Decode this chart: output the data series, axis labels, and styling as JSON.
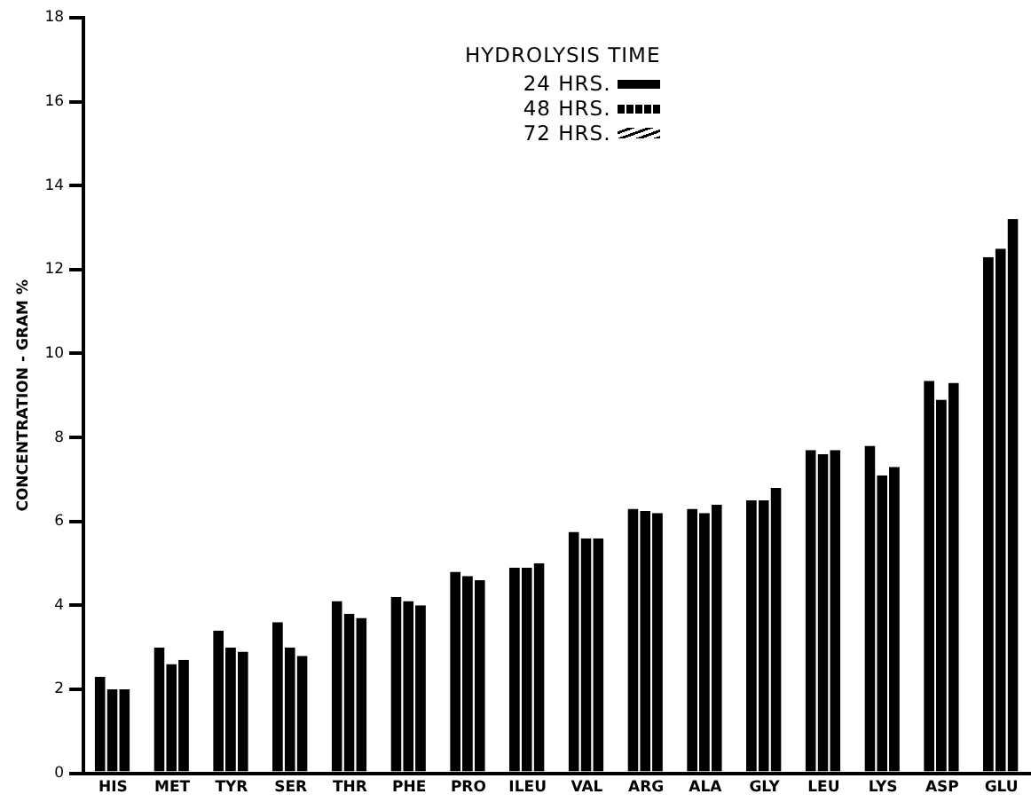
{
  "chart_data": {
    "type": "bar",
    "ylabel": "CONCENTRATION - GRAM %",
    "legend_title": "HYDROLYSIS TIME",
    "legend": "top",
    "categories": [
      "HIS",
      "MET",
      "TYR",
      "SER",
      "THR",
      "PHE",
      "PRO",
      "ILEU",
      "VAL",
      "ARG",
      "ALA",
      "GLY",
      "LEU",
      "LYS",
      "ASP",
      "GLU"
    ],
    "series": [
      {
        "name": "24 HRS.",
        "color": "#000000",
        "values": [
          2.3,
          3.0,
          3.4,
          3.6,
          4.1,
          4.2,
          4.8,
          4.9,
          5.75,
          6.3,
          6.3,
          6.5,
          7.7,
          7.8,
          9.35,
          12.3
        ]
      },
      {
        "name": "48 HRS.",
        "color": "#000000",
        "values": [
          2.0,
          2.6,
          3.0,
          3.0,
          3.8,
          4.1,
          4.7,
          4.9,
          5.6,
          6.25,
          6.2,
          6.5,
          7.6,
          7.1,
          8.9,
          12.5
        ]
      },
      {
        "name": "72 HRS.",
        "color": "#000000",
        "values": [
          2.0,
          2.7,
          2.9,
          2.8,
          3.7,
          4.0,
          4.6,
          5.0,
          5.6,
          6.2,
          6.4,
          6.8,
          7.7,
          7.3,
          9.3,
          13.2
        ]
      }
    ],
    "ylim": [
      0,
      18
    ],
    "yticks": [
      0,
      2,
      4,
      6,
      8,
      10,
      12,
      14,
      16,
      18
    ],
    "grid": false
  }
}
